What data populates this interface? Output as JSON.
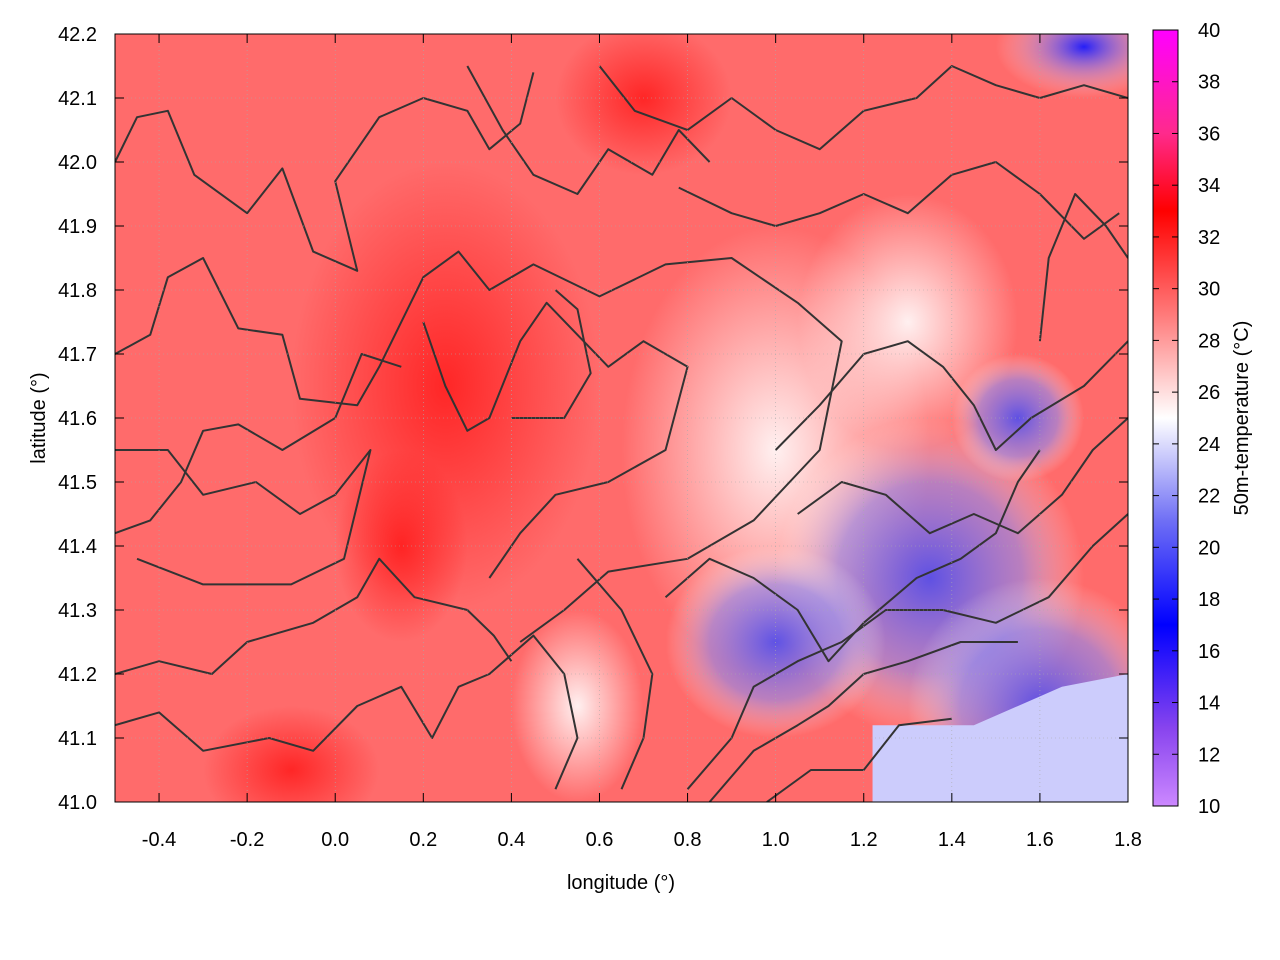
{
  "chart_data": {
    "type": "heatmap",
    "title": "",
    "xlabel": "longitude (°)",
    "ylabel": "latitude (°)",
    "xlim": [
      -0.5,
      1.8
    ],
    "ylim": [
      41.0,
      42.2
    ],
    "xticks": [
      "-0.4",
      "-0.2",
      "0.0",
      "0.2",
      "0.4",
      "0.6",
      "0.8",
      "1.0",
      "1.2",
      "1.4",
      "1.6",
      "1.8"
    ],
    "yticks": [
      "41.0",
      "41.1",
      "41.2",
      "41.3",
      "41.4",
      "41.5",
      "41.6",
      "41.7",
      "41.8",
      "41.9",
      "42.0",
      "42.1",
      "42.2"
    ],
    "grid": true,
    "colorbar": {
      "label": "50m-temperature (°C)",
      "range": [
        10,
        40
      ],
      "ticks": [
        "10",
        "12",
        "14",
        "16",
        "18",
        "20",
        "22",
        "24",
        "26",
        "28",
        "30",
        "32",
        "34",
        "36",
        "38",
        "40"
      ],
      "palette": [
        {
          "value": 10,
          "color": "#cc88ff"
        },
        {
          "value": 13,
          "color": "#8844ee"
        },
        {
          "value": 17,
          "color": "#0000ff"
        },
        {
          "value": 21,
          "color": "#6e6ef5"
        },
        {
          "value": 25,
          "color": "#ffffff"
        },
        {
          "value": 29,
          "color": "#ff7a7a"
        },
        {
          "value": 33,
          "color": "#ff0000"
        },
        {
          "value": 36,
          "color": "#ff2a8c"
        },
        {
          "value": 40,
          "color": "#ff00ff"
        }
      ]
    },
    "field_regions": [
      {
        "region": "west and central",
        "lon": [
          -0.5,
          0.9
        ],
        "lat": [
          41.0,
          42.2
        ],
        "temperature_c": 31
      },
      {
        "region": "hot core",
        "lon": [
          0.1,
          0.4
        ],
        "lat": [
          41.3,
          41.9
        ],
        "temperature_c": 33
      },
      {
        "region": "north",
        "lon": [
          0.6,
          1.5
        ],
        "lat": [
          41.9,
          42.2
        ],
        "temperature_c": 31
      },
      {
        "region": "north-east corner",
        "lon": [
          1.5,
          1.8
        ],
        "lat": [
          42.1,
          42.2
        ],
        "temperature_c": 18
      },
      {
        "region": "south-east coast",
        "lon": [
          1.2,
          1.8
        ],
        "lat": [
          41.0,
          41.6
        ],
        "temperature_c": 23
      },
      {
        "region": "inland south-east",
        "lon": [
          0.8,
          1.5
        ],
        "lat": [
          41.1,
          41.5
        ],
        "temperature_c": 21
      }
    ],
    "contours": "terrain elevation isolines (unlabelled)"
  }
}
